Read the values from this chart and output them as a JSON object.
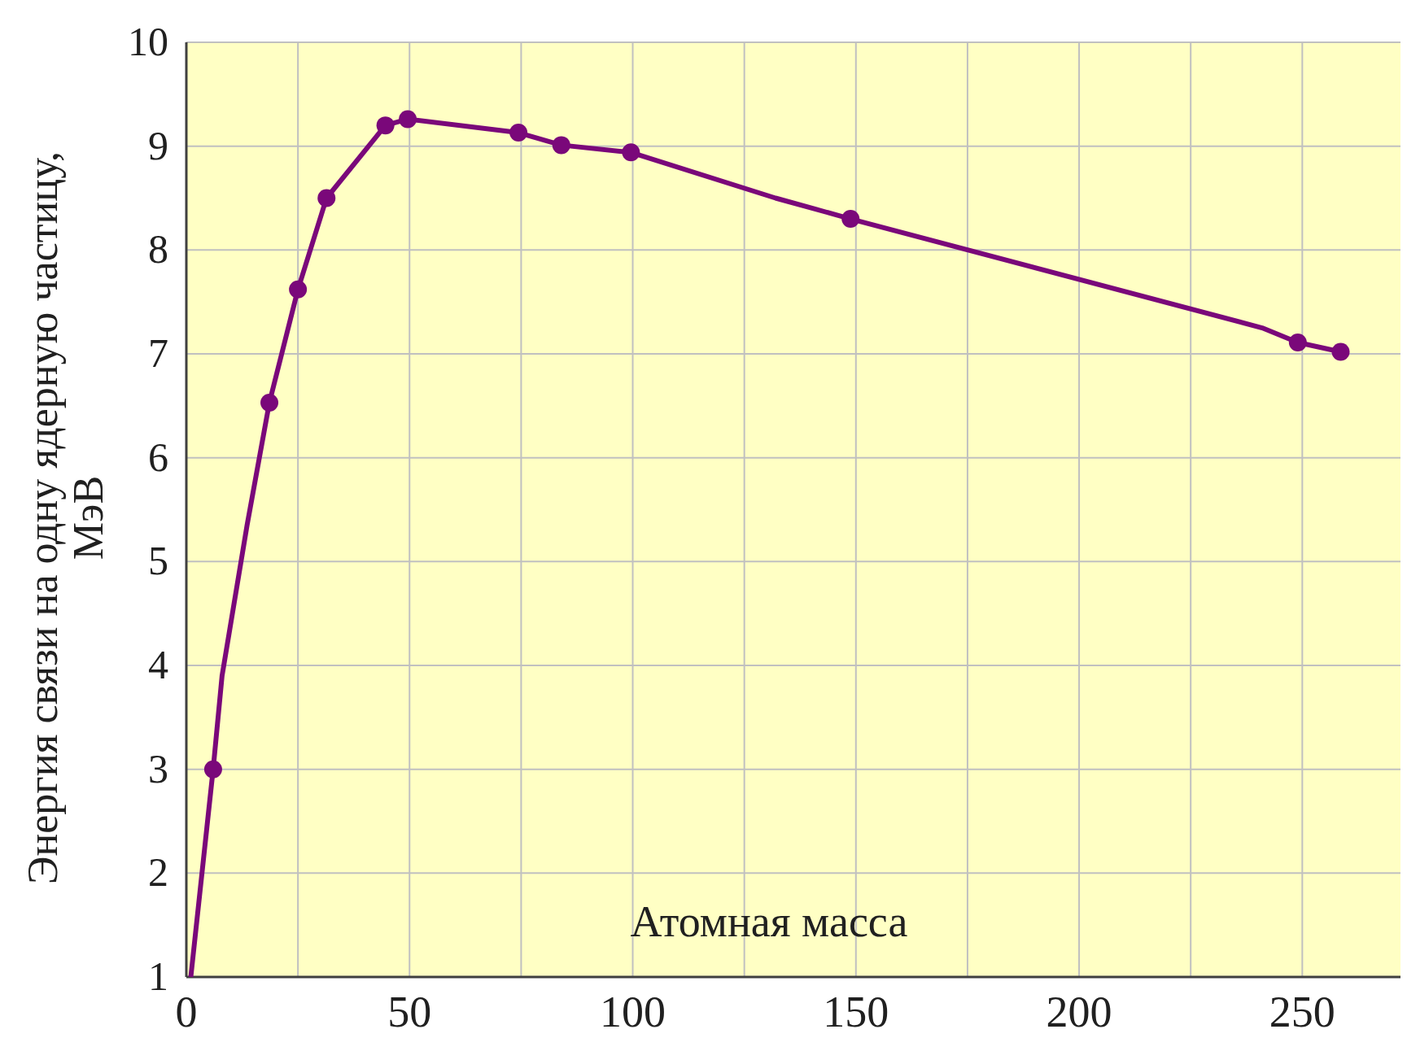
{
  "chart_data": {
    "type": "line",
    "xlabel": "Атомная масса",
    "ylabel": "Энергия связи на одну ядерную частицу, МэВ",
    "xlim": [
      0,
      272
    ],
    "ylim": [
      1,
      10
    ],
    "xticks": [
      0,
      {
        "value": 25,
        "label": null
      },
      50,
      {
        "value": 75,
        "label": null
      },
      100,
      {
        "value": 125,
        "label": null
      },
      150,
      {
        "value": 175,
        "label": null
      },
      200,
      {
        "value": 225,
        "label": null
      },
      250
    ],
    "yticks": [
      1,
      2,
      3,
      4,
      5,
      6,
      7,
      8,
      9,
      10
    ],
    "grid": true,
    "series": [
      {
        "marker": "none",
        "color": "#7a087a",
        "x": [
          1,
          6,
          8,
          13.6,
          18.6,
          25,
          31.4,
          44.6,
          49.6,
          74.4,
          84,
          99.6,
          132,
          148.8,
          241,
          249,
          258.6
        ],
        "values": [
          1,
          3,
          3.9,
          5.35,
          6.53,
          7.62,
          8.5,
          9.2,
          9.26,
          9.13,
          9.01,
          8.94,
          8.5,
          8.3,
          7.25,
          7.11,
          7.02
        ]
      },
      {
        "type": "scatter",
        "marker": "circle",
        "color": "#7a087a",
        "x": [
          6,
          18.6,
          25,
          31.4,
          44.6,
          49.6,
          74.4,
          84,
          99.6,
          148.8,
          249,
          258.6
        ],
        "values": [
          3,
          6.53,
          7.62,
          8.5,
          9.2,
          9.26,
          9.13,
          9.01,
          8.94,
          8.3,
          7.11,
          7.02
        ]
      }
    ]
  }
}
